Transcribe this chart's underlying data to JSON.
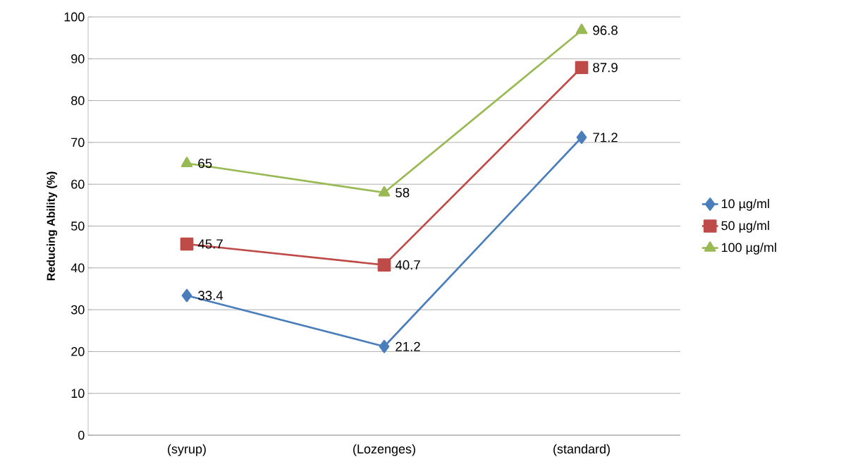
{
  "chart_data": {
    "type": "line",
    "ylabel": "Reducing Ability (%)",
    "categories": [
      "(syrup)",
      "(Lozenges)",
      "(standard)"
    ],
    "series": [
      {
        "name": "10 µg/ml",
        "color": "#4a7ebb",
        "marker": "diamond",
        "values": [
          33.4,
          21.2,
          71.2
        ]
      },
      {
        "name": "50 µg/ml",
        "color": "#be4b48",
        "marker": "square",
        "values": [
          45.7,
          40.7,
          87.9
        ]
      },
      {
        "name": "100  µg/ml",
        "color": "#98b954",
        "marker": "triangle",
        "values": [
          65,
          58,
          96.8
        ]
      }
    ],
    "ylim": [
      0,
      100
    ],
    "yticks": [
      0,
      10,
      20,
      30,
      40,
      50,
      60,
      70,
      80,
      90,
      100
    ],
    "grid": "y",
    "legend": "right",
    "data_labels": true,
    "line_style": "solid"
  }
}
